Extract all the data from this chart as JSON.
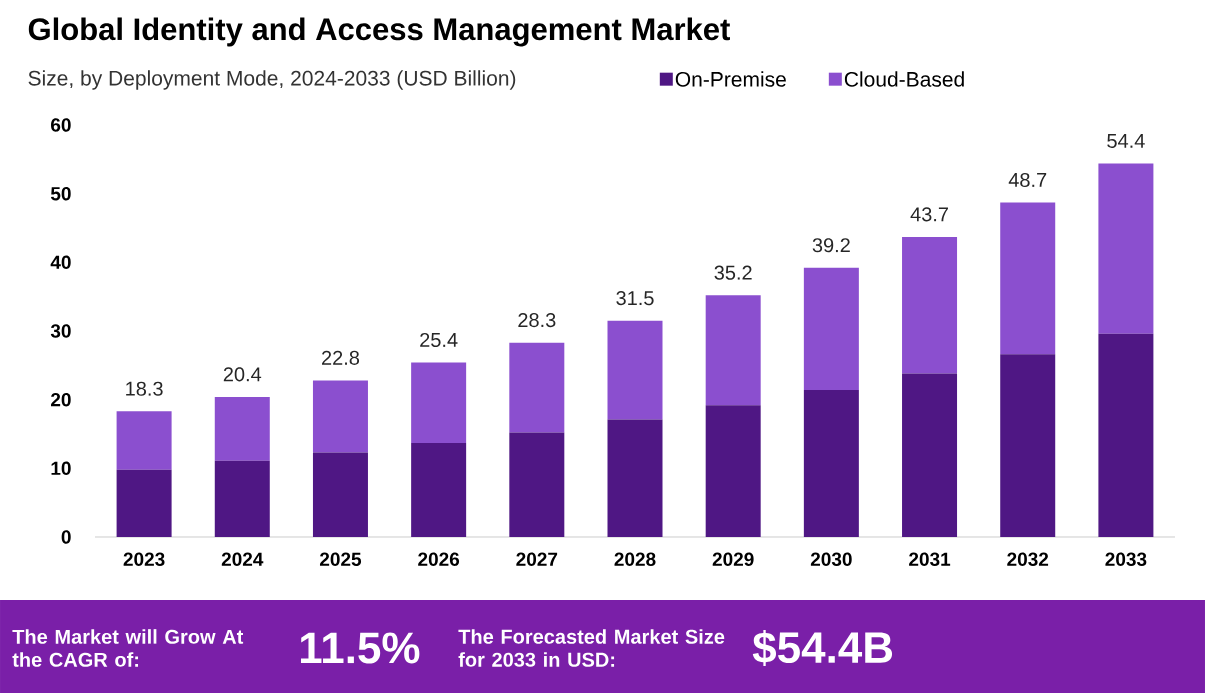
{
  "chart_data": {
    "type": "bar",
    "stacked": true,
    "title": "Global Identity and Access Management Market",
    "subtitle": "Size, by Deployment Mode, 2024-2033 (USD Billion)",
    "categories": [
      "2023",
      "2024",
      "2025",
      "2026",
      "2027",
      "2028",
      "2029",
      "2030",
      "2031",
      "2032",
      "2033"
    ],
    "series": [
      {
        "name": "On-Premise",
        "color": "#4f1784",
        "values": [
          9.8,
          11.1,
          12.3,
          13.7,
          15.2,
          17.1,
          19.2,
          21.4,
          23.8,
          26.6,
          29.6
        ]
      },
      {
        "name": "Cloud-Based",
        "color": "#8b4fcf",
        "values": [
          8.5,
          9.3,
          10.5,
          11.7,
          13.1,
          14.4,
          16.0,
          17.8,
          19.9,
          22.1,
          24.8
        ]
      }
    ],
    "totals": [
      "18.3",
      "20.4",
      "22.8",
      "25.4",
      "28.3",
      "31.5",
      "35.2",
      "39.2",
      "43.7",
      "48.7",
      "54.4"
    ],
    "ylim": [
      0,
      60
    ],
    "yticks": [
      0,
      10,
      20,
      30,
      40,
      50,
      60
    ],
    "legend": "top",
    "annotations": [
      "The Market will Grow At the CAGR of:",
      "11.5%",
      "The Forecasted Market Size for 2033 in USD:",
      "$54.4B"
    ]
  }
}
